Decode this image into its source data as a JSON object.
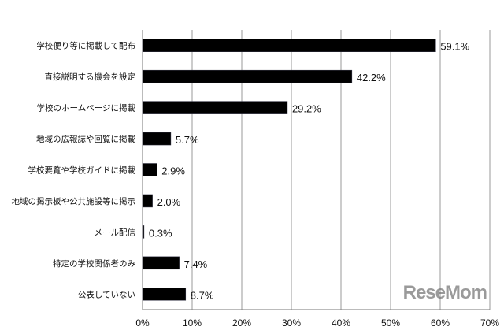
{
  "chart_data": {
    "type": "bar",
    "orientation": "horizontal",
    "categories": [
      "学校便り等に掲載して配布",
      "直接説明する機会を設定",
      "学校のホームページに掲載",
      "地域の広報誌や回覧に掲載",
      "学校要覧や学校ガイドに掲載",
      "地域の掲示板や公共施設等に掲示",
      "メール配信",
      "特定の学校関係者のみ",
      "公表していない"
    ],
    "values": [
      59.1,
      42.2,
      29.2,
      5.7,
      2.9,
      2.0,
      0.3,
      7.4,
      8.7
    ],
    "value_labels": [
      "59.1%",
      "42.2%",
      "29.2%",
      "5.7%",
      "2.9%",
      "2.0%",
      "0.3%",
      "7.4%",
      "8.7%"
    ],
    "xlim": [
      0,
      70
    ],
    "xticks": [
      "0%",
      "10%",
      "20%",
      "30%",
      "40%",
      "50%",
      "60%",
      "70%"
    ],
    "grid": true,
    "bar_color": "#000000",
    "title": "",
    "xlabel": "",
    "ylabel": ""
  },
  "watermark": "ReseMom"
}
